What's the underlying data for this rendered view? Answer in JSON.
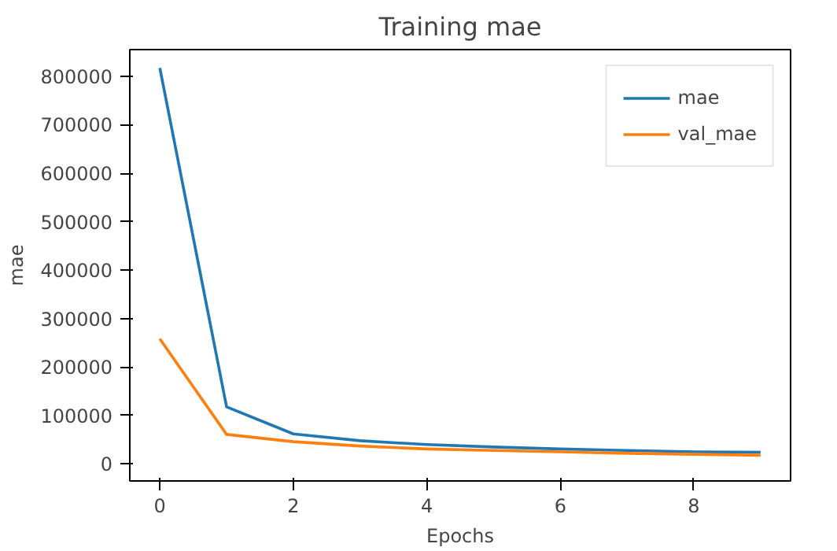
{
  "chart_data": {
    "type": "line",
    "title": "Training mae",
    "xlabel": "Epochs",
    "ylabel": "mae",
    "x": [
      0,
      1,
      2,
      3,
      4,
      5,
      6,
      7,
      8,
      9
    ],
    "series": [
      {
        "name": "mae",
        "color": "#1f77b4",
        "values": [
          817000,
          118000,
          62000,
          48000,
          40000,
          35000,
          31000,
          28000,
          25000,
          24000
        ]
      },
      {
        "name": "val_mae",
        "color": "#ff7f0e",
        "values": [
          258000,
          61000,
          46000,
          37000,
          31000,
          28000,
          25000,
          22000,
          20000,
          18000
        ]
      }
    ],
    "xlim": [
      -0.45,
      9.45
    ],
    "ylim": [
      -35000,
      855000
    ],
    "xticks": [
      0,
      2,
      4,
      6,
      8
    ],
    "yticks": [
      0,
      100000,
      200000,
      300000,
      400000,
      500000,
      600000,
      700000,
      800000
    ],
    "grid": false,
    "legend": "top right",
    "marker": "none",
    "line_style": "solid"
  }
}
